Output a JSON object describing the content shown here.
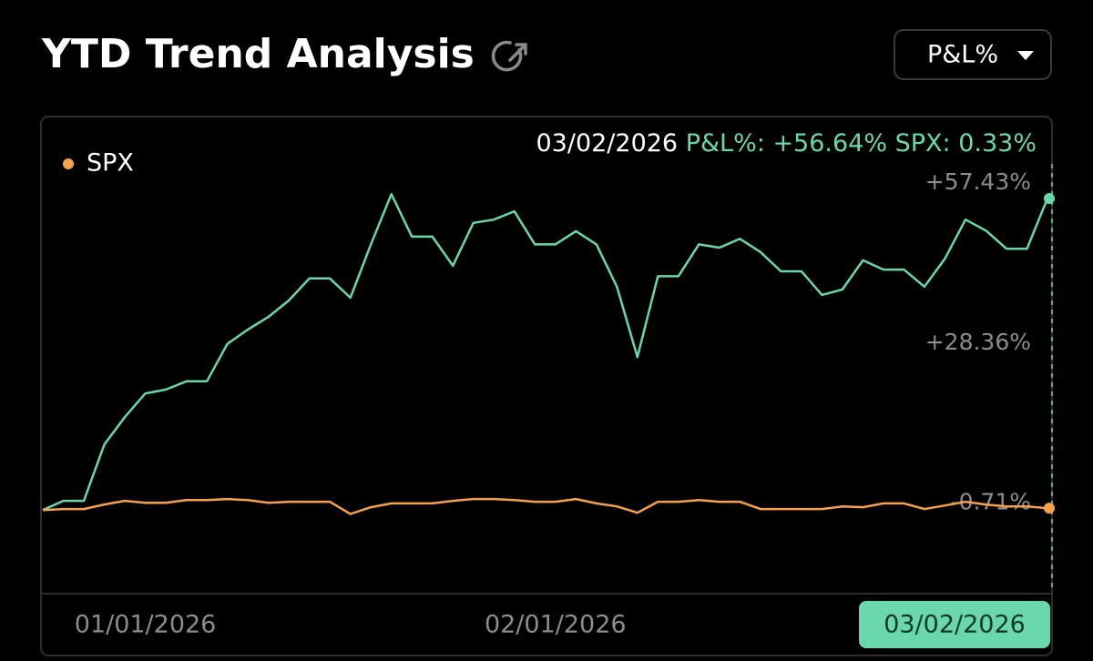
{
  "header": {
    "title": "YTD Trend Analysis",
    "dropdown": "P&L%"
  },
  "chart_data": {
    "type": "line",
    "categories": [
      null,
      null,
      null,
      null,
      null,
      "01/01/2026",
      null,
      null,
      null,
      null,
      null,
      null,
      null,
      null,
      null,
      null,
      null,
      null,
      null,
      null,
      null,
      null,
      null,
      null,
      null,
      "02/01/2026",
      null,
      null,
      null,
      null,
      null,
      null,
      null,
      null,
      null,
      null,
      null,
      null,
      null,
      null,
      null,
      null,
      null,
      null,
      null,
      null,
      null,
      null,
      null,
      "03/02/2026"
    ],
    "series": [
      {
        "name": "P&L%",
        "color": "#6ad7ab",
        "legend": false,
        "values": [
          0,
          1.66,
          1.66,
          11.9,
          16.9,
          21.2,
          21.9,
          23.4,
          23.4,
          30.2,
          32.8,
          35.1,
          38.1,
          42.1,
          42.1,
          38.6,
          48.3,
          57.43,
          49.7,
          49.7,
          44.4,
          52.2,
          52.8,
          54.3,
          48.3,
          48.3,
          50.7,
          48.3,
          40.6,
          27.8,
          42.5,
          42.5,
          48.3,
          47.7,
          49.3,
          46.9,
          43.4,
          43.4,
          39.1,
          40.1,
          45.4,
          43.7,
          43.7,
          40.6,
          45.7,
          52.8,
          50.8,
          47.5,
          47.5,
          56.64
        ]
      },
      {
        "name": "SPX",
        "color": "#f5a24b",
        "legend": true,
        "values": [
          0,
          0.17,
          0.17,
          1.0,
          1.66,
          1.3,
          1.3,
          1.8,
          1.8,
          2.0,
          1.8,
          1.3,
          1.5,
          1.5,
          1.5,
          -0.71,
          0.5,
          1.2,
          1.2,
          1.2,
          1.66,
          2.0,
          2.0,
          1.8,
          1.5,
          1.5,
          2.0,
          1.2,
          0.66,
          -0.5,
          1.5,
          1.5,
          1.8,
          1.5,
          1.5,
          0.17,
          0.17,
          0.17,
          0.17,
          0.66,
          0.5,
          1.2,
          1.2,
          0.17,
          0.83,
          1.5,
          1.0,
          0.66,
          0.66,
          0.33
        ]
      }
    ],
    "ylim": [
      -15.2,
      71.2
    ],
    "yticks": [
      {
        "value": 57.43,
        "label": "+57.43%"
      },
      {
        "value": 28.36,
        "label": "+28.36%"
      },
      {
        "value": -0.71,
        "label": "-0.71%"
      }
    ],
    "grid": false,
    "tooltip": {
      "date": "03/02/2026",
      "entries": [
        {
          "name": "P&L%:",
          "value": 56.64,
          "value_label": "+56.64%"
        },
        {
          "name": "SPX:",
          "value": 0.33,
          "value_label": "0.33%"
        }
      ]
    }
  }
}
